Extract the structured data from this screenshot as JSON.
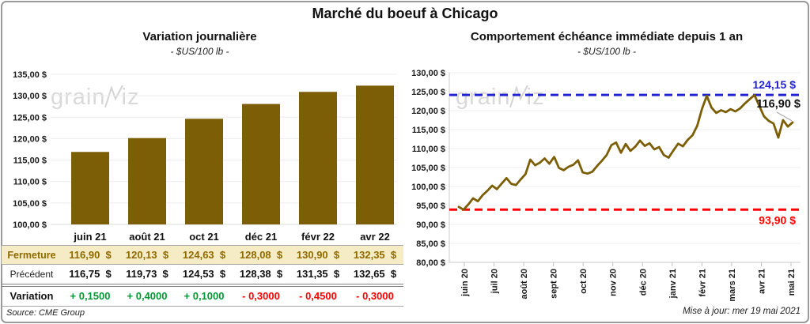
{
  "page": {
    "title": "Marché du boeuf à Chicago",
    "source": "Source: CME Group",
    "updated": "Mise à jour: mer 19 mai 2021",
    "watermark": "grainwiz"
  },
  "colors": {
    "gold": "#7c5e06",
    "cream": "#f5ebc4",
    "green": "#009832",
    "red": "#ff0000",
    "blue": "#2323cd",
    "gridline": "#ececec",
    "axis": "#c9c9c9"
  },
  "chart_data": [
    {
      "type": "bar",
      "title": "Variation journalière",
      "subtitle": "- $US/100 lb -",
      "categories": [
        "juin 21",
        "août 21",
        "oct 21",
        "déc 21",
        "févr 22",
        "avr 22"
      ],
      "values": [
        116.9,
        120.13,
        124.63,
        128.08,
        130.9,
        132.35
      ],
      "ylim": [
        100,
        135
      ],
      "ytick_step": 5,
      "y_ticks_top_down": [
        "135,00 $",
        "130,00 $",
        "125,00 $",
        "120,00 $",
        "115,00 $",
        "110,00 $",
        "105,00 $",
        "100,00 $"
      ],
      "grid": true,
      "bar_color": "#7c5e06"
    },
    {
      "type": "line",
      "title": "Comportement échéance immédiate depuis 1 an",
      "subtitle": "- $US/100 lb -",
      "x_labels": [
        "juin 20",
        "juil 20",
        "août 20",
        "sept 20",
        "oct 20",
        "nov 20",
        "déc 20",
        "janv 21",
        "févr 21",
        "mars 21",
        "avr 21",
        "mai 21"
      ],
      "values": [
        94.6,
        93.9,
        95.3,
        96.9,
        96.1,
        97.7,
        98.9,
        100.2,
        99.3,
        100.8,
        102.2,
        100.7,
        100.4,
        101.9,
        103.3,
        107.1,
        105.6,
        106.3,
        107.4,
        106.0,
        107.8,
        104.9,
        104.3,
        105.2,
        105.7,
        106.9,
        103.7,
        103.4,
        103.9,
        105.4,
        106.8,
        108.3,
        110.9,
        111.6,
        108.9,
        111.2,
        109.4,
        110.5,
        112.1,
        110.7,
        111.4,
        109.8,
        110.4,
        108.3,
        107.6,
        109.5,
        111.3,
        110.6,
        112.3,
        113.5,
        116.0,
        120.5,
        123.9,
        120.8,
        119.4,
        120.1,
        119.6,
        120.4,
        119.8,
        120.6,
        121.9,
        123.0,
        124.1,
        121.3,
        118.5,
        117.3,
        116.6,
        112.9,
        117.5,
        115.8,
        116.9
      ],
      "ylim": [
        80,
        130
      ],
      "ytick_step": 5,
      "y_ticks_top_down": [
        "130,00 $",
        "125,00 $",
        "120,00 $",
        "115,00 $",
        "110,00 $",
        "105,00 $",
        "100,00 $",
        "95,00 $",
        "90,00 $",
        "85,00 $",
        "80,00 $"
      ],
      "grid": true,
      "line_color": "#7c5e06",
      "ref_high": {
        "value": 124.15,
        "label": "124,15 $",
        "color": "#2323cd",
        "style": "dashed"
      },
      "ref_low": {
        "value": 93.9,
        "label": "93,90 $",
        "color": "#ff0000",
        "style": "dashed"
      },
      "last_point_label": "116,90 $"
    }
  ],
  "table": {
    "columns": [
      "juin 21",
      "août 21",
      "oct 21",
      "déc 21",
      "févr 22",
      "avr 22"
    ],
    "rows": [
      {
        "label": "Fermeture",
        "values": [
          "116,90  $",
          "120,13  $",
          "124,63  $",
          "128,08  $",
          "130,90  $",
          "132,35  $"
        ]
      },
      {
        "label": "Précédent",
        "values": [
          "116,75  $",
          "119,73  $",
          "124,53  $",
          "128,38  $",
          "131,35  $",
          "132,65  $"
        ]
      },
      {
        "label": "Variation",
        "values": [
          "+ 0,1500",
          "+ 0,4000",
          "+ 0,1000",
          "- 0,3000",
          "- 0,4500",
          "- 0,3000"
        ],
        "signs": [
          "pos",
          "pos",
          "pos",
          "neg",
          "neg",
          "neg"
        ]
      }
    ]
  }
}
